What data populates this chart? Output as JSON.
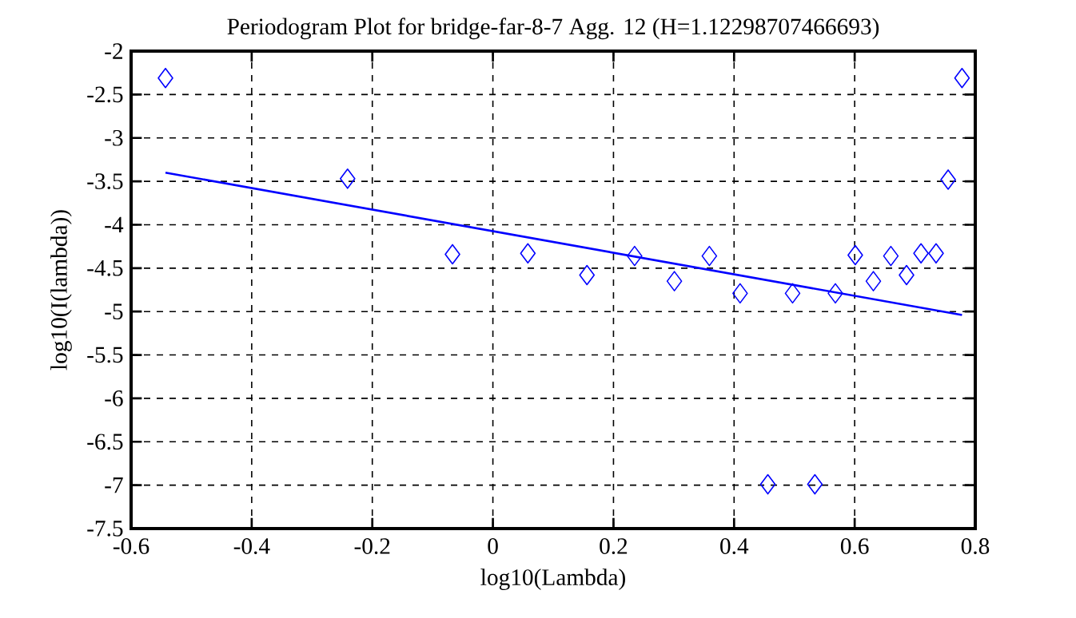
{
  "chart_data": {
    "type": "scatter",
    "title": "Periodogram Plot for bridge-far-8-7 Agg. 12 (H=1.12298707466693)",
    "xlabel": "log10(Lambda)",
    "ylabel": "log10(I(lambda))",
    "xlim": [
      -0.6,
      0.8
    ],
    "ylim": [
      -7.5,
      -2
    ],
    "xticks": [
      -0.6,
      -0.4,
      -0.2,
      0,
      0.2,
      0.4,
      0.6,
      0.8
    ],
    "yticks": [
      -7.5,
      -7,
      -6.5,
      -6,
      -5.5,
      -5,
      -4.5,
      -4,
      -3.5,
      -3,
      -2.5,
      -2
    ],
    "grid": true,
    "series": [
      {
        "marker": "diamond",
        "color": "#0000ff",
        "x": [
          -0.543,
          -0.241,
          -0.067,
          0.058,
          0.156,
          0.235,
          0.301,
          0.359,
          0.41,
          0.456,
          0.497,
          0.534,
          0.568,
          0.601,
          0.631,
          0.66,
          0.686,
          0.71,
          0.735,
          0.755,
          0.778
        ],
        "values": [
          -2.31,
          -3.47,
          -4.34,
          -4.33,
          -4.58,
          -4.36,
          -4.65,
          -4.36,
          -4.79,
          -6.99,
          -4.79,
          -6.99,
          -4.79,
          -4.35,
          -4.65,
          -4.36,
          -4.58,
          -4.33,
          -4.33,
          -3.48,
          -2.31
        ]
      },
      {
        "type": "line",
        "marker": "none",
        "color": "#0000ff",
        "x": [
          -0.543,
          0.778
        ],
        "values": [
          -3.4,
          -5.04
        ]
      }
    ]
  }
}
